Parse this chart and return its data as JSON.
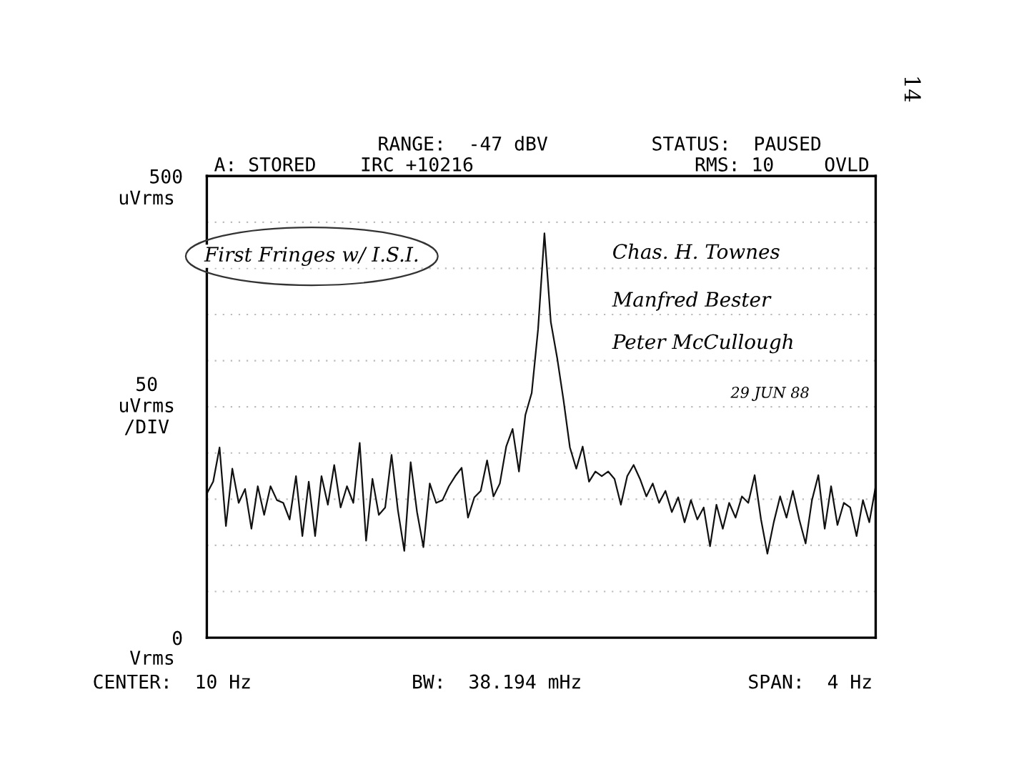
{
  "chart_data": {
    "type": "line",
    "color": "#111111",
    "line_style": "solid",
    "marker": "none",
    "categories": [
      null,
      null,
      null,
      null,
      null,
      null,
      null,
      null,
      null,
      null,
      null,
      null,
      null,
      null,
      null,
      null,
      null,
      null,
      null,
      null,
      null,
      null,
      null,
      null,
      null,
      null,
      null,
      null,
      null,
      null,
      null,
      null,
      null,
      null,
      null,
      null,
      null,
      null,
      null,
      null,
      null,
      null,
      null,
      null,
      null,
      null,
      null,
      null,
      null,
      null,
      null,
      null,
      null,
      null,
      null,
      null,
      null,
      null,
      null,
      null,
      null,
      null,
      null,
      null,
      null,
      null,
      null,
      null,
      null,
      null,
      null,
      null,
      null,
      null,
      null,
      null,
      null,
      null,
      null,
      null,
      null,
      null,
      null,
      null,
      null,
      null,
      null,
      null,
      null,
      null,
      null,
      null,
      null,
      null,
      null,
      null,
      null,
      null,
      null,
      null,
      null,
      null,
      null,
      null,
      null,
      null
    ],
    "values": [
      156,
      169,
      206,
      121,
      183,
      146,
      161,
      118,
      164,
      133,
      164,
      149,
      146,
      128,
      175,
      110,
      169,
      110,
      175,
      144,
      187,
      141,
      164,
      146,
      211,
      105,
      172,
      133,
      141,
      198,
      138,
      94,
      190,
      136,
      98,
      167,
      146,
      149,
      164,
      175,
      184,
      130,
      152,
      159,
      192,
      153,
      167,
      207,
      226,
      180,
      241,
      265,
      334,
      438,
      342,
      303,
      257,
      206,
      183,
      207,
      169,
      180,
      175,
      180,
      172,
      144,
      175,
      187,
      172,
      153,
      167,
      146,
      159,
      136,
      152,
      125,
      149,
      128,
      141,
      99,
      144,
      118,
      146,
      130,
      153,
      146,
      176,
      128,
      91,
      125,
      153,
      130,
      159,
      128,
      102,
      149,
      176,
      118,
      164,
      122,
      146,
      141,
      110,
      149,
      125,
      164
    ],
    "ylim": [
      0,
      500
    ],
    "yticks": [
      {
        "value": 0,
        "label": "0"
      },
      {
        "value": 50,
        "label": null
      },
      {
        "value": 100,
        "label": null
      },
      {
        "value": 150,
        "label": null
      },
      {
        "value": 200,
        "label": null
      },
      {
        "value": 250,
        "label": null
      },
      {
        "value": 300,
        "label": null
      },
      {
        "value": 350,
        "label": null
      },
      {
        "value": 400,
        "label": null
      },
      {
        "value": 450,
        "label": null
      },
      {
        "value": 500,
        "label": "500"
      }
    ],
    "tick_labels": "y",
    "grid": "y",
    "ylabel": "50\nuVrms\n/DIV",
    "annotations": [
      "RANGE:  -47 dBV",
      "STATUS:  PAUSED",
      "A: STORED",
      "IRC +10216",
      "RMS: 10",
      "OVLD",
      "CENTER:  10 Hz",
      "BW:  38.194 mHz",
      "SPAN:  4 Hz",
      "First Fringes w/ I.S.I.",
      "Chas. H. Townes",
      "Manfred Bester",
      "Peter McCullough",
      "29 JUN 88",
      "14",
      "uVrms",
      "Vrms"
    ]
  }
}
